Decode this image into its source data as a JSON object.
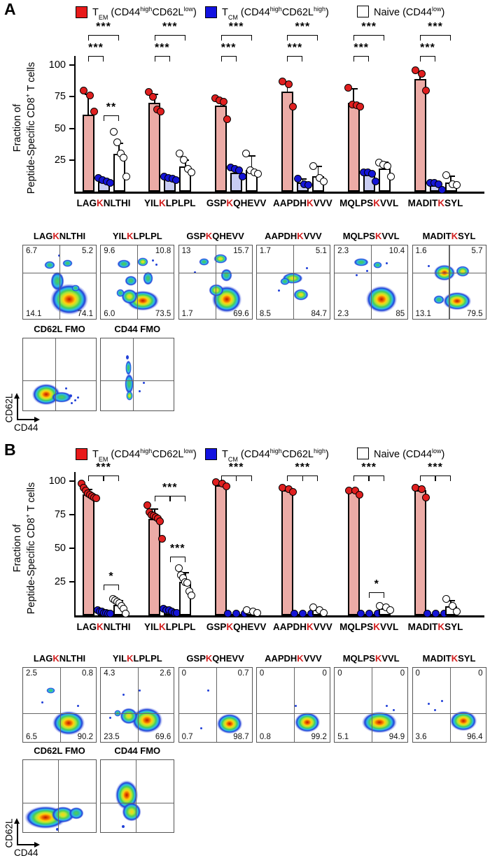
{
  "figure": {
    "panel_a_label": "A",
    "panel_b_label": "B",
    "colors": {
      "tem_point": "#e01f1f",
      "tem_bar": "#ecaba6",
      "tcm_point": "#1414d6",
      "tcm_bar": "#c8ccf2",
      "naive_point": "#ffffff",
      "naive_bar": "#ffffff",
      "red_letter": "#d21f1f"
    },
    "legend": [
      {
        "swatch": "#e81a1a",
        "base": "T",
        "sub": "EM",
        "parts": [
          {
            "t": " (CD44"
          },
          {
            "sup": "high"
          },
          {
            "t": "CD62L"
          },
          {
            "sup": "low"
          },
          {
            "t": ")"
          }
        ]
      },
      {
        "swatch": "#1212e0",
        "base": "T",
        "sub": "CM",
        "parts": [
          {
            "t": " (CD44"
          },
          {
            "sup": "high"
          },
          {
            "t": "CD62L"
          },
          {
            "sup": "high"
          },
          {
            "t": ")"
          }
        ]
      },
      {
        "swatch": "#ffffff",
        "base": "Naive",
        "sub": "",
        "parts": [
          {
            "t": " (CD44"
          },
          {
            "sup": "low"
          },
          {
            "t": ")"
          }
        ]
      }
    ],
    "flow_axes": {
      "x": "CD44",
      "y": "CD62L"
    }
  },
  "chart_data": [
    {
      "panel": "A",
      "type": "bar",
      "title": "",
      "ylabel_line1": "Fraction of",
      "ylabel_line2_pre": "Peptide-Specific CD8",
      "ylabel_line2_sup": "+",
      "ylabel_line2_post": " T cells",
      "ylim": [
        0,
        100
      ],
      "yticks": [
        25,
        50,
        75,
        100
      ],
      "categories": [
        {
          "pre": "LAG",
          "k": "K",
          "post": "NLTHI",
          "text": "LAGKNLTHI"
        },
        {
          "pre": "YIL",
          "k": "K",
          "post": "LPLPL",
          "text": "YILKLPLPL"
        },
        {
          "pre": "GSP",
          "k": "K",
          "post": "QHEVV",
          "text": "GSPKQHEVV"
        },
        {
          "pre": "AAPDH",
          "k": "K",
          "post": "VVV",
          "text": "AAPDHKVVV"
        },
        {
          "pre": "MQLPS",
          "k": "K",
          "post": "VVL",
          "text": "MQLPSKVVL"
        },
        {
          "pre": "MADIT",
          "k": "K",
          "post": "SYL",
          "text": "MADITKSYL"
        }
      ],
      "series": [
        {
          "key": "tem",
          "name": "TEM (CD44high CD62Llow)",
          "bar_fill": "#ecaba6",
          "point_fill": "#e01f1f",
          "means": [
            61,
            70,
            68,
            79,
            70,
            89
          ],
          "errs": [
            16,
            7,
            5,
            8,
            11,
            6
          ],
          "points": [
            [
              80,
              76,
              63
            ],
            [
              79,
              75,
              65,
              63
            ],
            [
              74,
              72,
              71,
              57
            ],
            [
              87,
              85,
              67
            ],
            [
              82,
              69,
              68,
              67
            ],
            [
              96,
              93,
              80
            ]
          ]
        },
        {
          "key": "tcm",
          "name": "TCM (CD44high CD62Lhigh)",
          "bar_fill": "#c8ccf2",
          "point_fill": "#1414d6",
          "means": [
            8,
            10,
            15,
            7,
            13,
            5
          ],
          "errs": [
            2,
            2,
            3,
            3,
            3,
            2
          ],
          "points": [
            [
              11,
              9,
              8,
              7
            ],
            [
              12,
              11,
              10,
              9
            ],
            [
              19,
              18,
              17,
              12
            ],
            [
              10,
              6,
              5
            ],
            [
              15,
              15,
              14,
              8
            ],
            [
              7,
              7,
              6,
              1
            ]
          ]
        },
        {
          "key": "naive",
          "name": "Naive (CD44low)",
          "bar_fill": "#ffffff",
          "point_fill": "#ffffff",
          "means": [
            30,
            20,
            17,
            12,
            18,
            7
          ],
          "errs": [
            8,
            5,
            11,
            8,
            5,
            5
          ],
          "points": [
            [
              47,
              39,
              30,
              27,
              12
            ],
            [
              30,
              25,
              18,
              15
            ],
            [
              30,
              17,
              15,
              14
            ],
            [
              20,
              11,
              8
            ],
            [
              23,
              21,
              20,
              12
            ],
            [
              13,
              6,
              5
            ]
          ]
        }
      ],
      "sig": [
        {
          "g": 0,
          "a": 0,
          "b": 1,
          "y": 107,
          "stars": "***"
        },
        {
          "g": 0,
          "a": 0,
          "b": 2,
          "y": 124,
          "stars": "***"
        },
        {
          "g": 0,
          "a": 1,
          "b": 2,
          "y": 60,
          "stars": "**"
        },
        {
          "g": 1,
          "a": 0,
          "b": 1,
          "y": 107,
          "stars": "***"
        },
        {
          "g": 1,
          "a": 0,
          "b": 2,
          "y": 124,
          "stars": "***"
        },
        {
          "g": 2,
          "a": 0,
          "b": 1,
          "y": 107,
          "stars": "***"
        },
        {
          "g": 2,
          "a": 0,
          "b": 2,
          "y": 124,
          "stars": "***"
        },
        {
          "g": 3,
          "a": 0,
          "b": 1,
          "y": 107,
          "stars": "***"
        },
        {
          "g": 3,
          "a": 0,
          "b": 2,
          "y": 124,
          "stars": "***"
        },
        {
          "g": 4,
          "a": 0,
          "b": 1,
          "y": 107,
          "stars": "***"
        },
        {
          "g": 4,
          "a": 0,
          "b": 2,
          "y": 124,
          "stars": "***"
        },
        {
          "g": 5,
          "a": 0,
          "b": 1,
          "y": 107,
          "stars": "***"
        },
        {
          "g": 5,
          "a": 0,
          "b": 2,
          "y": 124,
          "stars": "***"
        }
      ]
    },
    {
      "panel": "B",
      "type": "bar",
      "title": "",
      "ylabel_line1": "Fraction of",
      "ylabel_line2_pre": "Peptide-Specific CD8",
      "ylabel_line2_sup": "+",
      "ylabel_line2_post": " T cells",
      "ylim": [
        0,
        100
      ],
      "yticks": [
        25,
        50,
        75,
        100
      ],
      "categories": [
        {
          "pre": "LAG",
          "k": "K",
          "post": "NLTHI",
          "text": "LAGKNLTHI"
        },
        {
          "pre": "YIL",
          "k": "K",
          "post": "LPLPL",
          "text": "YILKLPLPL"
        },
        {
          "pre": "GSP",
          "k": "K",
          "post": "QHEVV",
          "text": "GSPKQHEVV"
        },
        {
          "pre": "AAPDH",
          "k": "K",
          "post": "VVV",
          "text": "AAPDHKVVV"
        },
        {
          "pre": "MQLPS",
          "k": "K",
          "post": "VVL",
          "text": "MQLPSKVVL"
        },
        {
          "pre": "MADIT",
          "k": "K",
          "post": "SYL",
          "text": "MADITKSYL"
        }
      ],
      "series": [
        {
          "key": "tem",
          "name": "TEM (CD44high CD62Llow)",
          "bar_fill": "#ecaba6",
          "point_fill": "#e01f1f",
          "means": [
            90,
            72,
            97,
            93,
            92,
            93
          ],
          "errs": [
            4,
            7,
            2,
            2,
            2,
            3
          ],
          "points": [
            [
              98,
              95,
              93,
              91,
              90,
              89,
              88,
              87
            ],
            [
              82,
              77,
              75,
              74,
              73,
              72,
              70,
              57
            ],
            [
              99,
              98,
              96
            ],
            [
              95,
              94,
              92
            ],
            [
              93,
              93,
              90
            ],
            [
              95,
              94,
              88
            ]
          ]
        },
        {
          "key": "tcm",
          "name": "TCM (CD44high CD62Lhigh)",
          "bar_fill": "#c8ccf2",
          "point_fill": "#1414d6",
          "means": [
            2,
            3,
            0.8,
            0.8,
            0.8,
            0.8
          ],
          "errs": [
            1,
            1,
            0,
            0,
            0,
            0
          ],
          "points": [
            [
              4,
              3,
              3,
              2,
              2,
              1,
              1
            ],
            [
              5,
              4,
              4,
              3,
              2,
              2
            ],
            [
              0.5,
              0.5,
              0.5
            ],
            [
              0.5,
              0.5,
              0.5
            ],
            [
              0.5,
              0.5,
              0.5
            ],
            [
              0.5,
              0.5,
              0.5
            ]
          ]
        },
        {
          "key": "naive",
          "name": "Naive (CD44low)",
          "bar_fill": "#ffffff",
          "point_fill": "#ffffff",
          "means": [
            8,
            25,
            3,
            4,
            5,
            7
          ],
          "errs": [
            3,
            7,
            1,
            2,
            2,
            4
          ],
          "points": [
            [
              12,
              11,
              10,
              9,
              7,
              5,
              1
            ],
            [
              35,
              30,
              28,
              25,
              24,
              18,
              15
            ],
            [
              4,
              3,
              2
            ],
            [
              6,
              4,
              2
            ],
            [
              7,
              6,
              4
            ],
            [
              12,
              7,
              3
            ]
          ]
        }
      ],
      "sig": [
        {
          "g": 0,
          "a": 0,
          "b": 2,
          "y": 104,
          "stars": "***",
          "mid": true
        },
        {
          "g": 0,
          "a": 1,
          "b": 2,
          "y": 23,
          "stars": "*"
        },
        {
          "g": 1,
          "a": 0,
          "b": 2,
          "y": 89,
          "stars": "***",
          "mid": true
        },
        {
          "g": 1,
          "a": 1,
          "b": 2,
          "y": 44,
          "stars": "***"
        },
        {
          "g": 2,
          "a": 0,
          "b": 2,
          "y": 104,
          "stars": "***",
          "mid": true
        },
        {
          "g": 3,
          "a": 0,
          "b": 2,
          "y": 104,
          "stars": "***",
          "mid": true
        },
        {
          "g": 4,
          "a": 0,
          "b": 2,
          "y": 104,
          "stars": "***",
          "mid": true
        },
        {
          "g": 4,
          "a": 1,
          "b": 2,
          "y": 17,
          "stars": "*"
        },
        {
          "g": 5,
          "a": 0,
          "b": 2,
          "y": 104,
          "stars": "***",
          "mid": true
        }
      ]
    }
  ],
  "flow_rows": [
    {
      "panel": "A",
      "plots": [
        {
          "title": {
            "pre": "LAG",
            "k": "K",
            "post": "NLTHI"
          },
          "tl": "6.7",
          "tr": "5.2",
          "bl": "14.1",
          "br": "74.1"
        },
        {
          "title": {
            "pre": "YIL",
            "k": "K",
            "post": "LPLPL"
          },
          "tl": "9.6",
          "tr": "10.8",
          "bl": "6.0",
          "br": "73.5"
        },
        {
          "title": {
            "pre": "GSP",
            "k": "K",
            "post": "QHEVV"
          },
          "tl": "13",
          "tr": "15.7",
          "bl": "1.7",
          "br": "69.6"
        },
        {
          "title": {
            "pre": "AAPDH",
            "k": "K",
            "post": "VVV"
          },
          "tl": "1.7",
          "tr": "5.1",
          "bl": "8.5",
          "br": "84.7"
        },
        {
          "title": {
            "pre": "MQLPS",
            "k": "K",
            "post": "VVL"
          },
          "tl": "2.3",
          "tr": "10.4",
          "bl": "2.3",
          "br": "85"
        },
        {
          "title": {
            "pre": "MADIT",
            "k": "K",
            "post": "SYL"
          },
          "tl": "1.6",
          "tr": "5.7",
          "bl": "13.1",
          "br": "79.5"
        }
      ]
    },
    {
      "panel": "B",
      "plots": [
        {
          "title": {
            "pre": "LAG",
            "k": "K",
            "post": "NLTHI"
          },
          "tl": "2.5",
          "tr": "0.8",
          "bl": "6.5",
          "br": "90.2"
        },
        {
          "title": {
            "pre": "YIL",
            "k": "K",
            "post": "LPLPL"
          },
          "tl": "4.3",
          "tr": "2.6",
          "bl": "23.5",
          "br": "69.6"
        },
        {
          "title": {
            "pre": "GSP",
            "k": "K",
            "post": "QHEVV"
          },
          "tl": "0",
          "tr": "0.7",
          "bl": "0.7",
          "br": "98.7"
        },
        {
          "title": {
            "pre": "AAPDH",
            "k": "K",
            "post": "VVV"
          },
          "tl": "0",
          "tr": "0",
          "bl": "0.8",
          "br": "99.2"
        },
        {
          "title": {
            "pre": "MQLPS",
            "k": "K",
            "post": "VVL"
          },
          "tl": "0",
          "tr": "0",
          "bl": "5.1",
          "br": "94.9"
        },
        {
          "title": {
            "pre": "MADIT",
            "k": "K",
            "post": "SYL"
          },
          "tl": "0",
          "tr": "0",
          "bl": "3.6",
          "br": "96.4"
        }
      ]
    }
  ],
  "fmo_rows": [
    {
      "panel": "A",
      "titles": [
        "CD62L FMO",
        "CD44 FMO"
      ]
    },
    {
      "panel": "B",
      "titles": [
        "CD62L FMO",
        "CD44 FMO"
      ]
    }
  ]
}
